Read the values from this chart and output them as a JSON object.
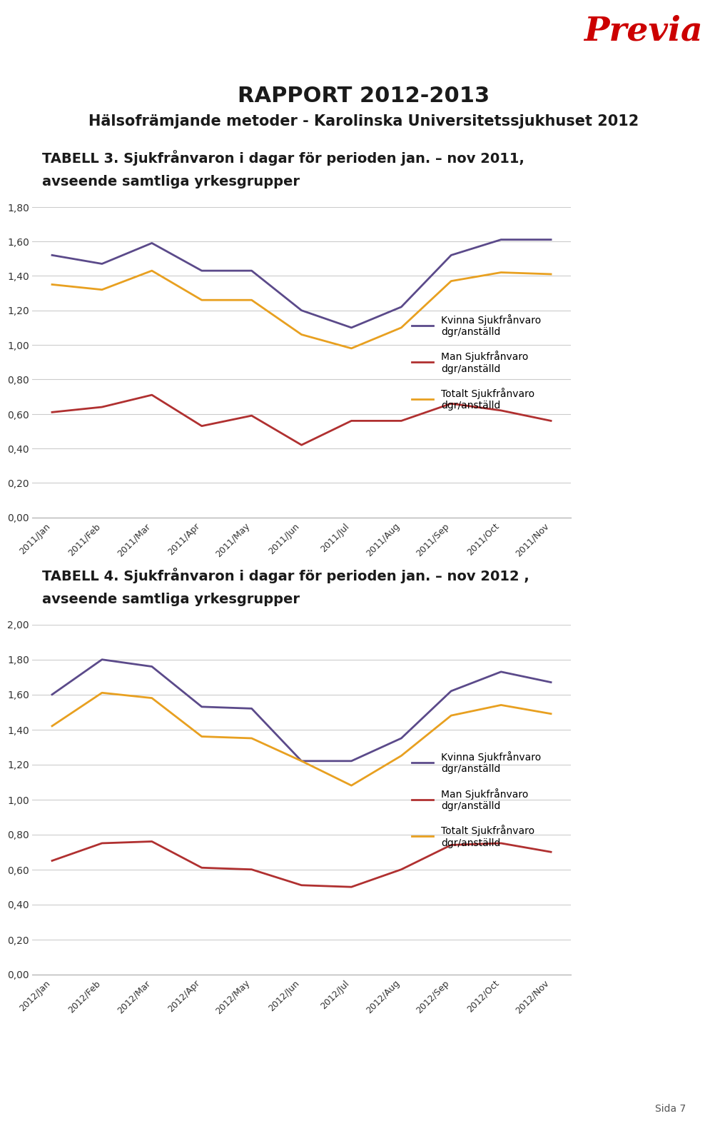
{
  "title_main": "RAPPORT 2012-2013",
  "title_sub": "Hälsofrämjande metoder - Karolinska Universitetssjukhuset 2012",
  "chart1_label": "TABELL 3. Sjukfrånvaron i dagar för perioden jan. – nov 2011,",
  "chart1_label2": "avseende samtliga yrkesgrupper",
  "chart2_label": "TABELL 4. Sjukfrånvaron i dagar för perioden jan. – nov 2012 ,",
  "chart2_label2": "avseende samtliga yrkesgrupper",
  "months_2011": [
    "2011/Jan",
    "2011/Feb",
    "2011/Mar",
    "2011/Apr",
    "2011/May",
    "2011/Jun",
    "2011/Jul",
    "2011/Aug",
    "2011/Sep",
    "2011/Oct",
    "2011/Nov"
  ],
  "months_2012": [
    "2012/Jan",
    "2012/Feb",
    "2012/Mar",
    "2012/Apr",
    "2012/May",
    "2012/Jun",
    "2012/Jul",
    "2012/Aug",
    "2012/Sep",
    "2012/Oct",
    "2012/Nov"
  ],
  "kvinna_2011": [
    1.52,
    1.47,
    1.59,
    1.43,
    1.43,
    1.2,
    1.1,
    1.22,
    1.52,
    1.61,
    1.61
  ],
  "man_2011": [
    0.61,
    0.64,
    0.71,
    0.53,
    0.59,
    0.42,
    0.56,
    0.56,
    0.66,
    0.62,
    0.56
  ],
  "totalt_2011": [
    1.35,
    1.32,
    1.43,
    1.26,
    1.26,
    1.06,
    0.98,
    1.1,
    1.37,
    1.42,
    1.41
  ],
  "kvinna_2012": [
    1.6,
    1.8,
    1.76,
    1.53,
    1.52,
    1.22,
    1.22,
    1.35,
    1.62,
    1.73,
    1.67
  ],
  "man_2012": [
    0.65,
    0.75,
    0.76,
    0.61,
    0.6,
    0.51,
    0.5,
    0.6,
    0.74,
    0.75,
    0.7
  ],
  "totalt_2012": [
    1.42,
    1.61,
    1.58,
    1.36,
    1.35,
    1.22,
    1.08,
    1.25,
    1.48,
    1.54,
    1.49
  ],
  "color_kvinna": "#5b4a8a",
  "color_man": "#b03030",
  "color_totalt": "#e8a020",
  "ylim1": [
    0.0,
    1.8
  ],
  "ylim2": [
    0.0,
    2.0
  ],
  "yticks1": [
    0.0,
    0.2,
    0.4,
    0.6,
    0.8,
    1.0,
    1.2,
    1.4,
    1.6,
    1.8
  ],
  "yticks2": [
    0.0,
    0.2,
    0.4,
    0.6,
    0.8,
    1.0,
    1.2,
    1.4,
    1.6,
    1.8,
    2.0
  ],
  "legend_kvinna": "Kvinna Sjukfrånvaro\ndgr/anställd",
  "legend_man": "Man Sjukfrånvaro\ndgr/anställd",
  "legend_totalt": "Totalt Sjukfrånvaro\ndgr/anställd",
  "bg_color": "#ffffff",
  "previa_color": "#cc0000",
  "page_num": "Sida 7"
}
